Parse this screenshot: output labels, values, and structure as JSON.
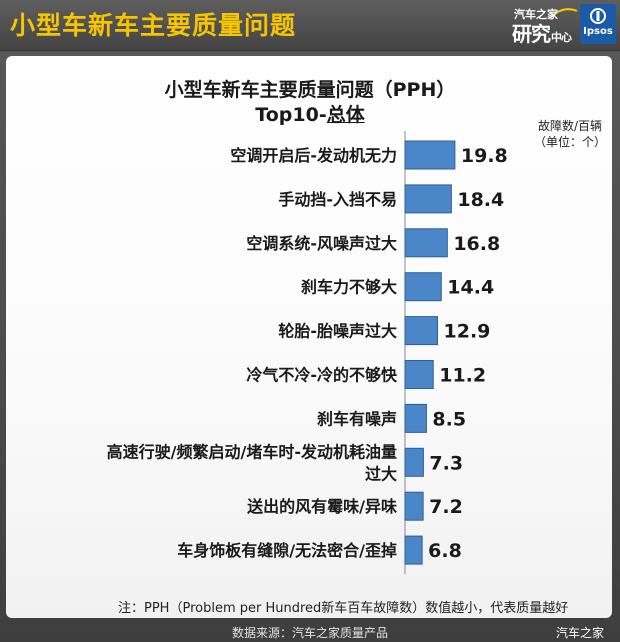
{
  "header": {
    "title": "小型车新车主要质量问题",
    "brand_top": "汽车之家",
    "brand_main": "研究",
    "brand_sub": "中心",
    "partner": "Ipsos"
  },
  "chart_data": {
    "type": "bar",
    "orientation": "horizontal",
    "title_line1": "小型车新车主要质量问题（PPH）",
    "title_line2_prefix": "Top10-",
    "title_line2_emph": "总体",
    "unit_label_line1": "故障数/百辆",
    "unit_label_line2": "（单位：个）",
    "categories": [
      "空调开启后-发动机无力",
      "手动挡-入挡不易",
      "空调系统-风噪声过大",
      "刹车力不够大",
      "轮胎-胎噪声过大",
      "冷气不冷-冷的不够快",
      "刹车有噪声",
      "高速行驶/频繁启动/堵车时-发动机耗油量过大",
      "送出的风有霉味/异味",
      "车身饰板有缝隙/无法密合/歪掉"
    ],
    "category_lines": [
      [
        "空调开启后-发动机无力"
      ],
      [
        "手动挡-入挡不易"
      ],
      [
        "空调系统-风噪声过大"
      ],
      [
        "刹车力不够大"
      ],
      [
        "轮胎-胎噪声过大"
      ],
      [
        "冷气不冷-冷的不够快"
      ],
      [
        "刹车有噪声"
      ],
      [
        "高速行驶/频繁启动/堵车时-发动机耗油量",
        "过大"
      ],
      [
        "送出的风有霉味/异味"
      ],
      [
        "车身饰板有缝隙/无法密合/歪掉"
      ]
    ],
    "values": [
      19.8,
      18.4,
      16.8,
      14.4,
      12.9,
      11.2,
      8.5,
      7.3,
      7.2,
      6.8
    ],
    "value_labels": [
      "19.8",
      "18.4",
      "16.8",
      "14.4",
      "12.9",
      "11.2",
      "8.5",
      "7.3",
      "7.2",
      "6.8"
    ],
    "bar_color": "#4a86c8",
    "bar_edge_color": "#2d5f9a",
    "xlim": [
      0,
      20
    ],
    "grid": false,
    "legend": "none"
  },
  "footnote": "注：PPH（Problem per Hundred新车百车故障数）数值越小，代表质量越好",
  "source": "数据来源：汽车之家质量产品",
  "watermark": "汽车之家",
  "colors": {
    "title_yellow": "#f6c400",
    "background_dark": "#4c4c4c",
    "panel": "#ffffff"
  }
}
